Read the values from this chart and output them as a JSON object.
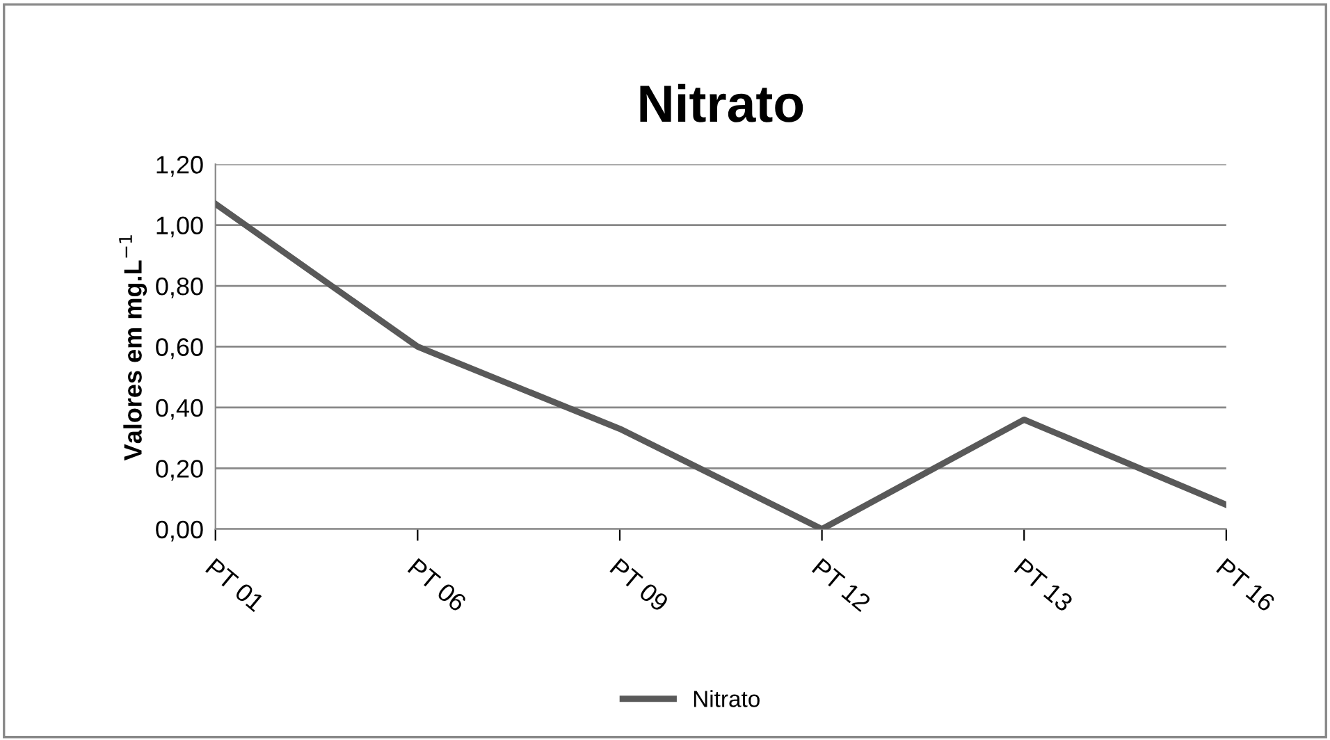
{
  "chart_data": {
    "type": "line",
    "title": "Nitrato",
    "ylabel": "Valores em mg.L$^{−1}$",
    "categories": [
      "PT 01",
      "PT 06",
      "PT 09",
      "PT 12",
      "PT 13",
      "PT 16"
    ],
    "series": [
      {
        "name": "Nitrato",
        "color": "#595959",
        "values": [
          1.07,
          0.6,
          0.33,
          0.0,
          0.36,
          0.08
        ]
      }
    ],
    "ylim": [
      0,
      1.2
    ],
    "yticks": [
      {
        "value": 0,
        "label": "0,00"
      },
      {
        "value": 0.2,
        "label": "0,20"
      },
      {
        "value": 0.4,
        "label": "0,40"
      },
      {
        "value": 0.6,
        "label": "0,60"
      },
      {
        "value": 0.8,
        "label": "0,80"
      },
      {
        "value": 1.0,
        "label": "1,00"
      },
      {
        "value": 1.2,
        "label": "1,20"
      }
    ],
    "grid": "y",
    "legend": "bottom",
    "marker": "none",
    "line_style": "solid"
  }
}
